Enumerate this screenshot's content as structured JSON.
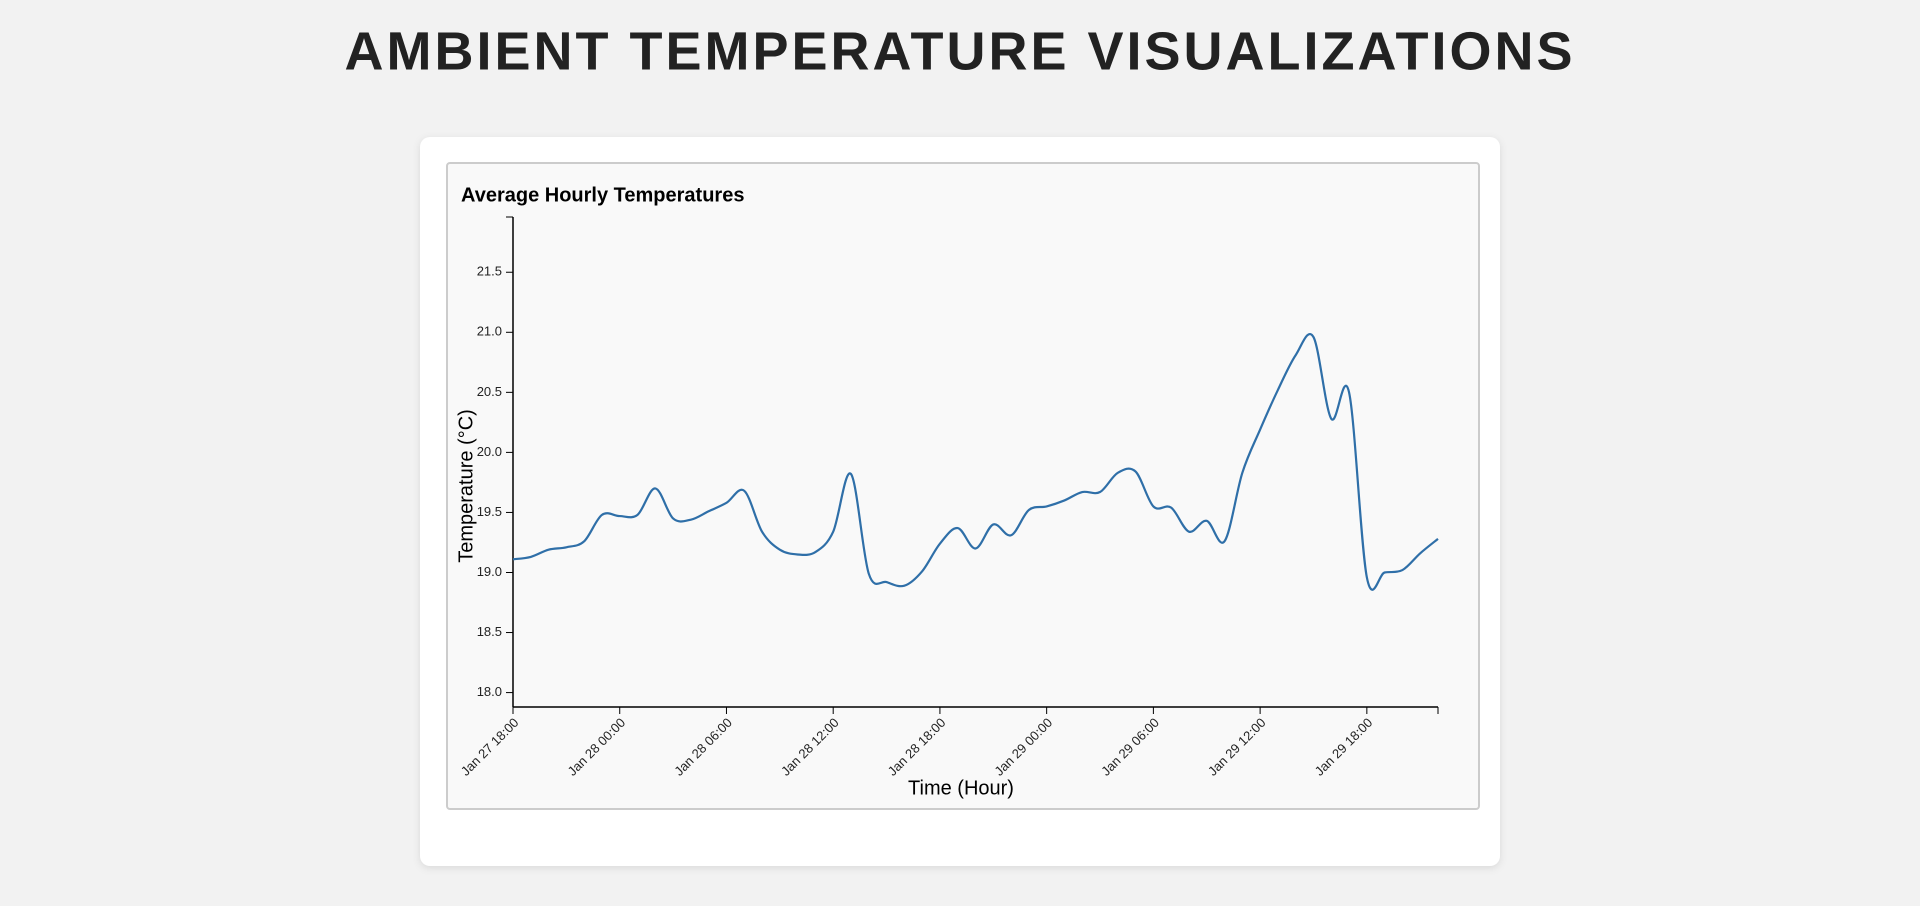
{
  "page_title": "AMBIENT TEMPERATURE VISUALIZATIONS",
  "chart_data": {
    "type": "line",
    "title": "Average Hourly Temperatures",
    "x_label": "Time (Hour)",
    "y_label": "Temperature (°C)",
    "x": [
      "Jan 27 18:00",
      "Jan 27 19:00",
      "Jan 27 20:00",
      "Jan 27 21:00",
      "Jan 27 22:00",
      "Jan 27 23:00",
      "Jan 28 00:00",
      "Jan 28 01:00",
      "Jan 28 02:00",
      "Jan 28 03:00",
      "Jan 28 04:00",
      "Jan 28 05:00",
      "Jan 28 06:00",
      "Jan 28 07:00",
      "Jan 28 08:00",
      "Jan 28 09:00",
      "Jan 28 10:00",
      "Jan 28 11:00",
      "Jan 28 12:00",
      "Jan 28 13:00",
      "Jan 28 14:00",
      "Jan 28 15:00",
      "Jan 28 16:00",
      "Jan 28 17:00",
      "Jan 28 18:00",
      "Jan 28 19:00",
      "Jan 28 20:00",
      "Jan 28 21:00",
      "Jan 28 22:00",
      "Jan 28 23:00",
      "Jan 29 00:00",
      "Jan 29 01:00",
      "Jan 29 02:00",
      "Jan 29 03:00",
      "Jan 29 04:00",
      "Jan 29 05:00",
      "Jan 29 06:00",
      "Jan 29 07:00",
      "Jan 29 08:00",
      "Jan 29 09:00",
      "Jan 29 10:00",
      "Jan 29 11:00",
      "Jan 29 12:00",
      "Jan 29 13:00",
      "Jan 29 14:00",
      "Jan 29 15:00",
      "Jan 29 16:00",
      "Jan 29 17:00",
      "Jan 29 18:00",
      "Jan 29 19:00",
      "Jan 29 20:00",
      "Jan 29 21:00",
      "Jan 29 22:00"
    ],
    "series": [
      {
        "color": "#2f6fa8",
        "values": [
          19.11,
          19.13,
          19.19,
          19.21,
          19.26,
          19.48,
          19.47,
          19.48,
          19.7,
          19.45,
          19.44,
          19.51,
          19.58,
          19.68,
          19.34,
          19.19,
          19.15,
          19.17,
          19.34,
          19.82,
          18.99,
          18.92,
          18.89,
          19.01,
          19.24,
          19.37,
          19.2,
          19.4,
          19.31,
          19.52,
          19.55,
          19.6,
          19.67,
          19.67,
          19.83,
          19.84,
          19.55,
          19.54,
          19.34,
          19.43,
          19.26,
          19.83,
          20.19,
          20.52,
          20.81,
          20.96,
          20.28,
          20.5,
          18.96,
          19.0,
          19.02,
          19.16,
          19.28
        ]
      }
    ],
    "xticks": [
      "Jan 27 18:00",
      "Jan 28 00:00",
      "Jan 28 06:00",
      "Jan 28 12:00",
      "Jan 28 18:00",
      "Jan 29 00:00",
      "Jan 29 06:00",
      "Jan 29 12:00",
      "Jan 29 18:00"
    ],
    "ylim": [
      17.88,
      21.96
    ],
    "yticks": [
      {
        "value": 18,
        "label": "18.0"
      },
      18.5,
      {
        "value": 19,
        "label": "19.0"
      },
      19.5,
      {
        "value": 20,
        "label": "20.0"
      },
      20.5,
      {
        "value": 21,
        "label": "21.0"
      },
      21.5
    ]
  }
}
